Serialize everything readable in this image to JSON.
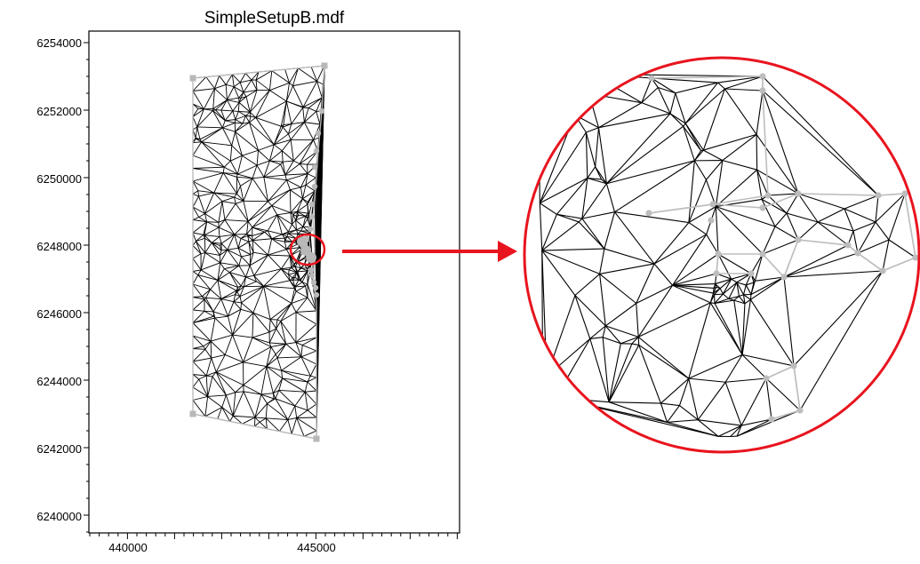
{
  "title": "SimpleSetupB.mdf",
  "y_axis": {
    "ticks": [
      "6254000",
      "6252000",
      "6250000",
      "6248000",
      "6246000",
      "6244000",
      "6242000",
      "6240000"
    ]
  },
  "x_axis": {
    "ticks": [
      "440000",
      "445000"
    ]
  },
  "colors": {
    "mesh": "#000000",
    "boundary": "#c0c0c0",
    "highlight": "#e8141e",
    "frame": "#000000"
  }
}
